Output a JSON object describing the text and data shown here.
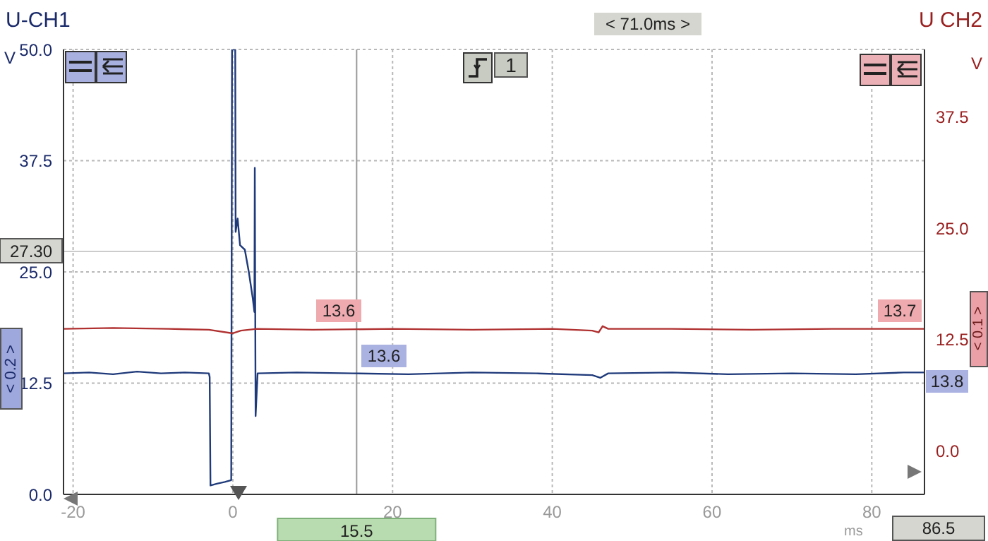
{
  "chart_data": {
    "type": "line",
    "ylabel": "U-CH1",
    "y2label": "U CH2",
    "xlim": [
      -21.2,
      86.6
    ],
    "xticks": [
      -20,
      0,
      20,
      40,
      60,
      80
    ],
    "ylim": [
      0,
      50
    ],
    "yticks": [
      {
        "value": 0,
        "label": "0.0"
      },
      {
        "value": 12.5,
        "label": "12.5"
      },
      {
        "value": 25,
        "label": "25.0"
      },
      {
        "value": 37.5,
        "label": "37.5"
      },
      {
        "value": 50,
        "label": "50.0"
      }
    ],
    "y2lim": [
      -4.9,
      45.1
    ],
    "y2ticks": [
      {
        "value": 0,
        "label": "0.0"
      },
      {
        "value": 12.5,
        "label": "12.5"
      },
      {
        "value": 25,
        "label": "25.0"
      },
      {
        "value": 37.5,
        "label": "37.5"
      }
    ],
    "grid": true,
    "legend": false,
    "marker": "none",
    "line_style": "solid",
    "series": [
      {
        "color": "#1f3a7a",
        "x": [
          -21.2,
          -18,
          -15,
          -12,
          -9,
          -6,
          -3,
          -2.9,
          -2.8,
          -2,
          -1,
          -0.2,
          -0.1,
          0.3,
          0.35,
          0.6,
          0.9,
          1.5,
          2,
          2.5,
          2.7,
          2.75,
          2.85,
          3.1,
          8,
          15,
          22,
          30,
          38,
          45,
          46,
          47,
          55,
          62,
          70,
          78,
          84,
          86.6
        ],
        "values": [
          13.6,
          13.7,
          13.5,
          13.8,
          13.6,
          13.7,
          13.6,
          13.2,
          1.0,
          1.2,
          1.4,
          1.6,
          50,
          50,
          29.5,
          31,
          28,
          27.5,
          25,
          22,
          20.5,
          36.7,
          8.8,
          13.6,
          13.7,
          13.6,
          13.5,
          13.7,
          13.6,
          13.4,
          13.1,
          13.6,
          13.7,
          13.5,
          13.6,
          13.5,
          13.7,
          13.7
        ]
      },
      {
        "color": "#b03030",
        "axis": "y2",
        "x": [
          -21.2,
          -15,
          -8,
          -3,
          0,
          1,
          3,
          10,
          20,
          30,
          40,
          45,
          45.8,
          46.3,
          47,
          55,
          65,
          75,
          86.6
        ],
        "values": [
          13.7,
          13.8,
          13.7,
          13.6,
          13.2,
          13.5,
          13.7,
          13.6,
          13.7,
          13.6,
          13.7,
          13.5,
          13.3,
          14.0,
          13.7,
          13.7,
          13.6,
          13.7,
          13.7
        ]
      }
    ],
    "ref_lines": [
      {
        "axis": "x",
        "value": 15.5,
        "label": "15.5",
        "color": "#999999"
      },
      {
        "axis": "y",
        "value": 27.3,
        "label": "27.30",
        "color": "#cccccc"
      }
    ],
    "annotations": [
      "< 71.0ms >",
      "1",
      "V",
      "V",
      "ms",
      "< 0.2 >",
      "< 0.1 >",
      "13.6",
      "13.6",
      "13.7",
      "13.8",
      "86.5"
    ]
  }
}
